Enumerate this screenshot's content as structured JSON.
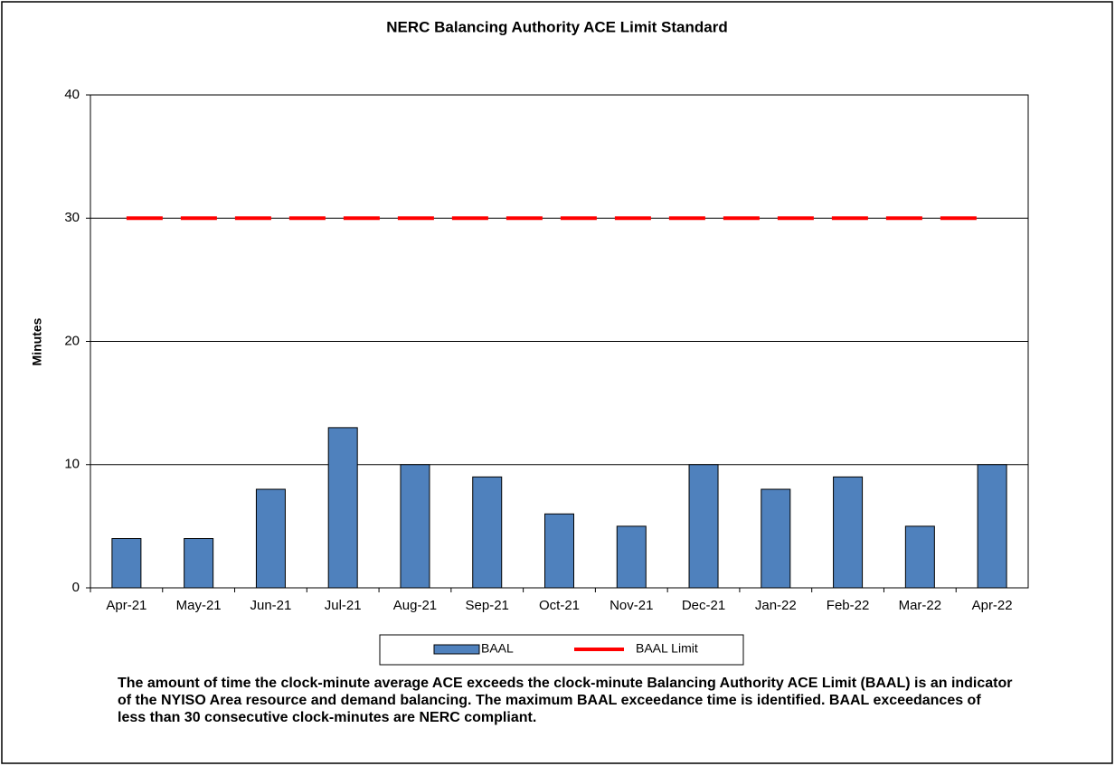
{
  "chart_data": {
    "type": "bar",
    "title": "NERC Balancing Authority ACE Limit Standard",
    "y_label": "Minutes",
    "categories": [
      "Apr-21",
      "May-21",
      "Jun-21",
      "Jul-21",
      "Aug-21",
      "Sep-21",
      "Oct-21",
      "Nov-21",
      "Dec-21",
      "Jan-22",
      "Feb-22",
      "Mar-22",
      "Apr-22"
    ],
    "series": [
      {
        "name": "BAAL",
        "type": "bar",
        "color": "#4f81bd",
        "values": [
          4,
          4,
          8,
          13,
          10,
          9,
          6,
          5,
          10,
          8,
          9,
          5,
          10
        ]
      },
      {
        "name": "BAAL Limit",
        "type": "line",
        "dashed": true,
        "color": "#ff0000",
        "values": [
          30,
          30,
          30,
          30,
          30,
          30,
          30,
          30,
          30,
          30,
          30,
          30,
          30
        ]
      }
    ],
    "ylim": [
      0,
      40
    ],
    "yticks": [
      0,
      10,
      20,
      30,
      40
    ],
    "grid": true,
    "annotation": "The  amount of time the clock-minute average ACE exceeds the clock-minute Balancing Authority  ACE Limit (BAAL)  is an indicator of the NYISO Area resource and demand balancing. The maximum BAAL exceedance time is identified. BAAL  exceedances of less than 30 consecutive clock-minutes are NERC compliant."
  }
}
